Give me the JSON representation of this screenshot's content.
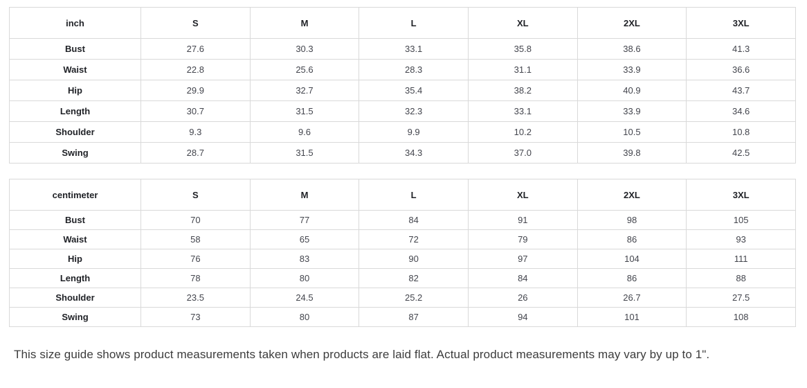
{
  "tables": [
    {
      "unit_label": "inch",
      "sizes": [
        "S",
        "M",
        "L",
        "XL",
        "2XL",
        "3XL"
      ],
      "rows": [
        {
          "label": "Bust",
          "values": [
            "27.6",
            "30.3",
            "33.1",
            "35.8",
            "38.6",
            "41.3"
          ]
        },
        {
          "label": "Waist",
          "values": [
            "22.8",
            "25.6",
            "28.3",
            "31.1",
            "33.9",
            "36.6"
          ]
        },
        {
          "label": "Hip",
          "values": [
            "29.9",
            "32.7",
            "35.4",
            "38.2",
            "40.9",
            "43.7"
          ]
        },
        {
          "label": "Length",
          "values": [
            "30.7",
            "31.5",
            "32.3",
            "33.1",
            "33.9",
            "34.6"
          ]
        },
        {
          "label": "Shoulder",
          "values": [
            "9.3",
            "9.6",
            "9.9",
            "10.2",
            "10.5",
            "10.8"
          ]
        },
        {
          "label": "Swing",
          "values": [
            "28.7",
            "31.5",
            "34.3",
            "37.0",
            "39.8",
            "42.5"
          ]
        }
      ]
    },
    {
      "unit_label": "centimeter",
      "sizes": [
        "S",
        "M",
        "L",
        "XL",
        "2XL",
        "3XL"
      ],
      "rows": [
        {
          "label": "Bust",
          "values": [
            "70",
            "77",
            "84",
            "91",
            "98",
            "105"
          ]
        },
        {
          "label": "Waist",
          "values": [
            "58",
            "65",
            "72",
            "79",
            "86",
            "93"
          ]
        },
        {
          "label": "Hip",
          "values": [
            "76",
            "83",
            "90",
            "97",
            "104",
            "111"
          ]
        },
        {
          "label": "Length",
          "values": [
            "78",
            "80",
            "82",
            "84",
            "86",
            "88"
          ]
        },
        {
          "label": "Shoulder",
          "values": [
            "23.5",
            "24.5",
            "25.2",
            "26",
            "26.7",
            "27.5"
          ]
        },
        {
          "label": "Swing",
          "values": [
            "73",
            "80",
            "87",
            "94",
            "101",
            "108"
          ]
        }
      ]
    }
  ],
  "footer": {
    "note": "This size guide shows product measurements taken when products are laid flat. Actual product measurements may vary by up to 1\"."
  },
  "colors": {
    "table_border": "#d9d9d9",
    "header_text": "#1f2126",
    "value_text": "#43454d",
    "note_text": "#3c3c3c",
    "background": "#ffffff"
  }
}
